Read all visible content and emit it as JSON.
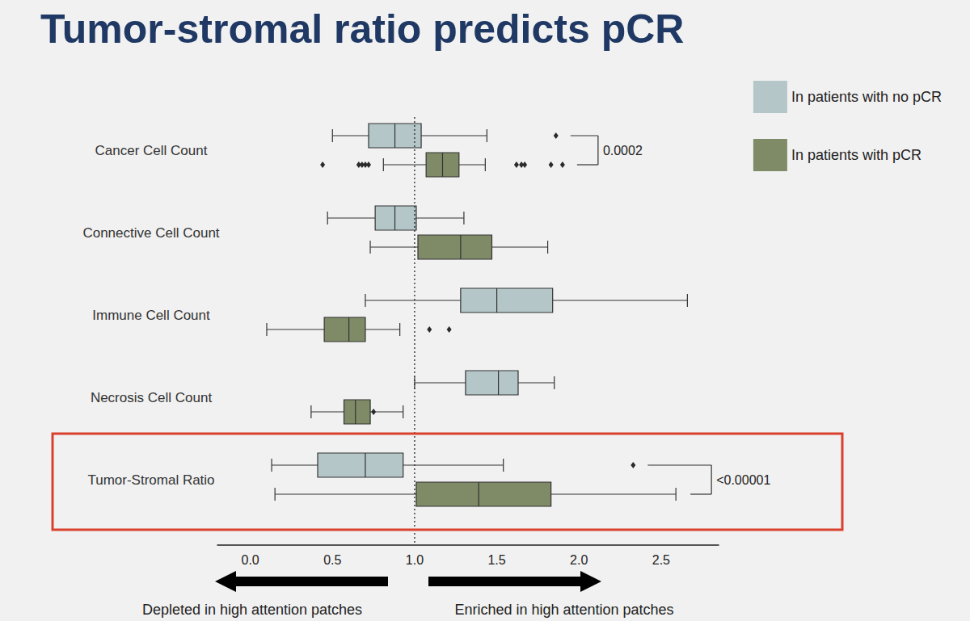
{
  "chart_data": {
    "type": "boxplot",
    "title": "Tumor-stromal ratio predicts pCR",
    "orientation": "horizontal",
    "categories": [
      "Cancer Cell Count",
      "Connective Cell Count",
      "Immune Cell Count",
      "Necrosis Cell Count",
      "Tumor-Stromal Ratio"
    ],
    "series": [
      {
        "name": "In patients with no pCR",
        "color": "#b4c6c8",
        "values": [
          [
            0.5,
            0.72,
            0.88,
            1.04,
            1.44
          ],
          [
            0.47,
            0.76,
            0.88,
            1.01,
            1.3
          ],
          [
            0.7,
            1.28,
            1.5,
            1.84,
            2.66
          ],
          [
            1.0,
            1.31,
            1.51,
            1.63,
            1.85
          ],
          [
            0.13,
            0.41,
            0.7,
            0.93,
            1.54
          ]
        ],
        "outliers": [
          [
            1.86
          ],
          [],
          [],
          [],
          [
            2.33
          ]
        ]
      },
      {
        "name": "In patients with pCR",
        "color": "#7f8b66",
        "values": [
          [
            0.81,
            1.07,
            1.17,
            1.27,
            1.43
          ],
          [
            0.73,
            1.02,
            1.28,
            1.47,
            1.81
          ],
          [
            0.1,
            0.45,
            0.6,
            0.7,
            0.91
          ],
          [
            0.37,
            0.57,
            0.64,
            0.73,
            0.93
          ],
          [
            0.15,
            1.01,
            1.39,
            1.83,
            2.59
          ]
        ],
        "outliers": [
          [
            0.44,
            0.66,
            0.68,
            0.7,
            0.72,
            1.62,
            1.65,
            1.67,
            1.83,
            1.9
          ],
          [],
          [
            1.09,
            1.21
          ],
          [
            0.75
          ],
          []
        ]
      }
    ],
    "xlim": [
      -0.2,
      2.85
    ],
    "xticks": [
      {
        "value": 0,
        "label": "0.0"
      },
      0.5,
      {
        "value": 1,
        "label": "1.0"
      },
      1.5,
      {
        "value": 2,
        "label": "2.0"
      },
      2.5
    ],
    "reference_line": 1,
    "p_values": [
      {
        "category": "Cancer Cell Count",
        "label": "0.0002"
      },
      {
        "category": "Tumor-Stromal Ratio",
        "label": "<0.00001"
      }
    ],
    "highlight": "Tumor-Stromal Ratio",
    "annotations": [
      {
        "text": "Depleted in high attention patches",
        "direction": "left"
      },
      {
        "text": "Enriched in high attention patches",
        "direction": "right"
      }
    ],
    "legend": "upper right",
    "grid": false
  }
}
